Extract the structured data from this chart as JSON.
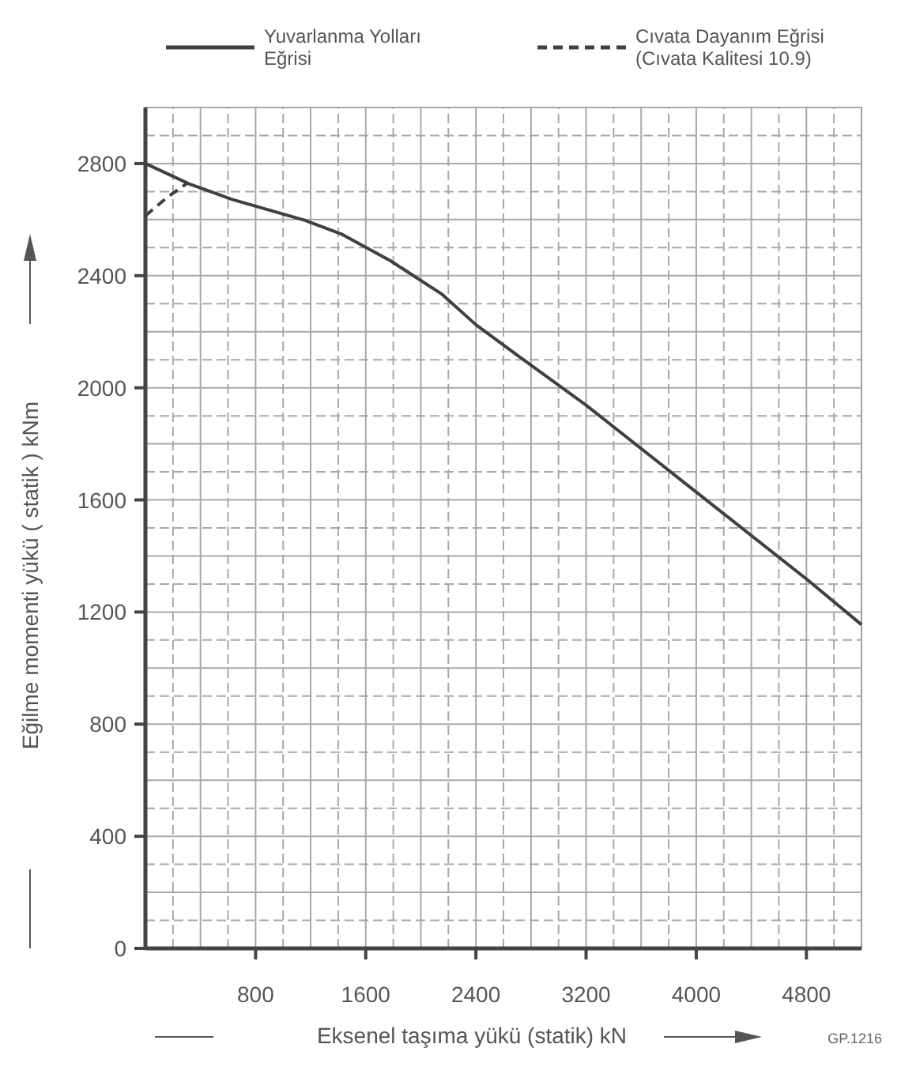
{
  "chart_data": {
    "type": "line",
    "xlabel": "Eksenel taşıma yükü  (statik) kN",
    "ylabel": "Eğilme momenti yükü  ( statik )  kNm",
    "annotations": [
      "GP.1216"
    ],
    "x": [
      0,
      320,
      630,
      1160,
      1430,
      1780,
      2150,
      2400,
      2690,
      3200,
      4000,
      4800,
      5200
    ],
    "series": [
      {
        "name": "Yuvarlanma Yolları Eğrisi",
        "color": "#404040",
        "line_style": "solid",
        "values": [
          2800,
          2727,
          2672,
          2597,
          2547,
          2453,
          2335,
          2225,
          2120,
          1938,
          1628,
          1318,
          1155
        ]
      },
      {
        "name": "Cıvata Dayanım Eğrisi (Cıvata Kalitesi 10.9)",
        "color": "#404040",
        "line_style": "dashed",
        "x": [
          0,
          160,
          310
        ],
        "values": [
          2614,
          2680,
          2732
        ]
      }
    ],
    "xlim": [
      0,
      5200
    ],
    "xticks": [
      800,
      1600,
      2400,
      3200,
      4000,
      4800
    ],
    "ylim": [
      0,
      3000
    ],
    "yticks": [
      0,
      400,
      800,
      1200,
      1600,
      2000,
      2400,
      2800
    ],
    "grid": true,
    "legend": "top"
  }
}
